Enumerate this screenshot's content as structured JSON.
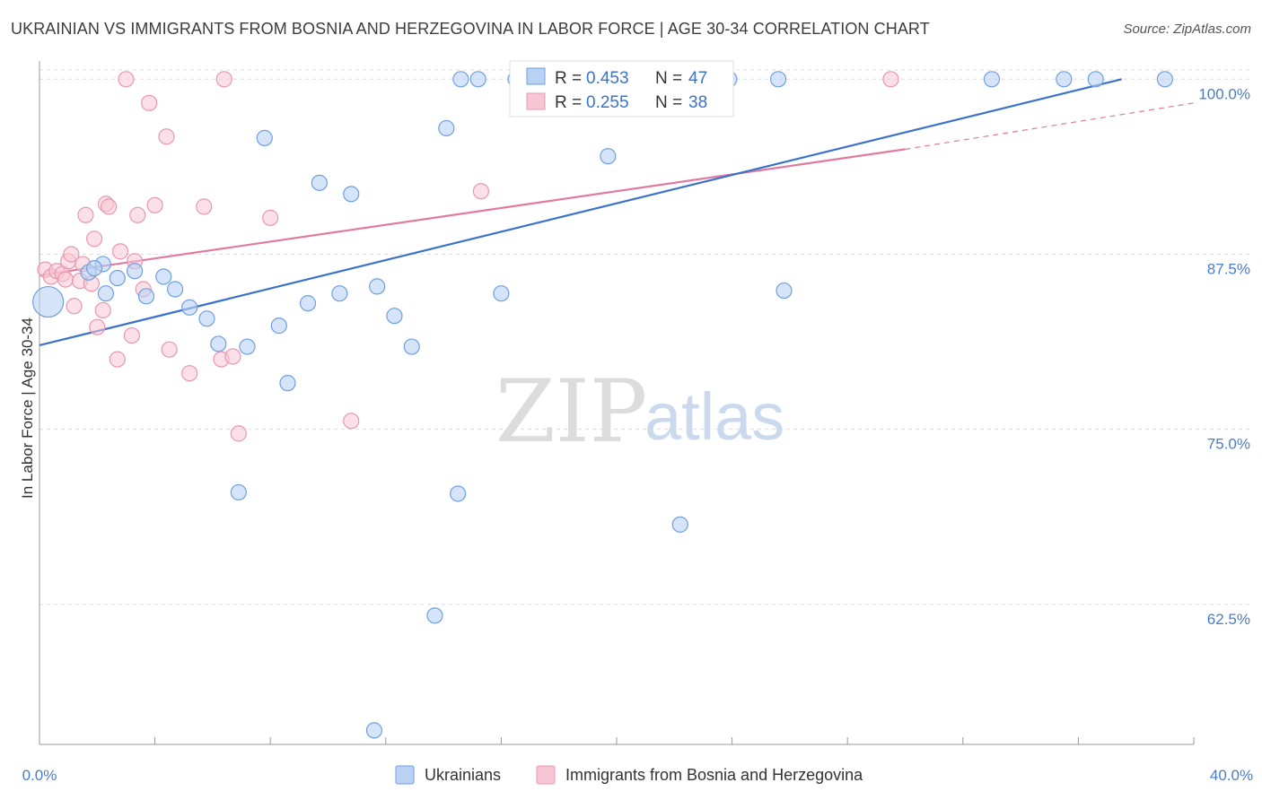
{
  "header": {
    "title": "UKRAINIAN VS IMMIGRANTS FROM BOSNIA AND HERZEGOVINA IN LABOR FORCE | AGE 30-34 CORRELATION CHART",
    "source": "Source: ZipAtlas.com"
  },
  "watermark": {
    "zip": "ZIP",
    "atlas": "atlas"
  },
  "colors": {
    "blue_fill": "#b9d2f3",
    "blue_stroke": "#6f9fe0",
    "blue_line": "#3a73c9",
    "pink_fill": "#f7c6d4",
    "pink_stroke": "#e897b0",
    "pink_line": "#e07aa0",
    "grid": "#dddddd",
    "axis": "#999999",
    "tick_text": "#4a7cc9"
  },
  "stats": {
    "r_label": "R =",
    "n_label": "N =",
    "blue": {
      "r": "0.453",
      "n": "47"
    },
    "pink": {
      "r": "0.255",
      "n": "38"
    }
  },
  "chart_data": {
    "type": "scatter",
    "title": "UKRAINIAN VS IMMIGRANTS FROM BOSNIA AND HERZEGOVINA IN LABOR FORCE | AGE 30-34 CORRELATION CHART",
    "xlabel": "",
    "ylabel": "In Labor Force | Age 30-34",
    "xlim": [
      0,
      40
    ],
    "ylim": [
      52.5,
      101.3
    ],
    "x_tick_labels": [
      "0.0%",
      "40.0%"
    ],
    "y_ticks": [
      62.5,
      75.0,
      87.5,
      100.0
    ],
    "y_tick_labels": [
      "62.5%",
      "75.0%",
      "87.5%",
      "100.0%"
    ],
    "grid": true,
    "legend_position": "bottom",
    "series": [
      {
        "name": "Ukrainians",
        "color": "#6f9fe0",
        "trend": {
          "x": [
            0,
            37.5
          ],
          "y": [
            81.0,
            100.0
          ]
        },
        "points": [
          {
            "x": 0.3,
            "y": 84.1,
            "big": true
          },
          {
            "x": 1.7,
            "y": 86.2
          },
          {
            "x": 2.2,
            "y": 86.8
          },
          {
            "x": 1.9,
            "y": 86.5
          },
          {
            "x": 2.3,
            "y": 84.7
          },
          {
            "x": 2.7,
            "y": 85.8
          },
          {
            "x": 3.3,
            "y": 86.3
          },
          {
            "x": 3.7,
            "y": 84.5
          },
          {
            "x": 4.3,
            "y": 85.9
          },
          {
            "x": 4.7,
            "y": 85.0
          },
          {
            "x": 5.2,
            "y": 83.7
          },
          {
            "x": 5.8,
            "y": 82.9
          },
          {
            "x": 6.2,
            "y": 81.1
          },
          {
            "x": 7.2,
            "y": 80.9
          },
          {
            "x": 7.8,
            "y": 95.8
          },
          {
            "x": 8.3,
            "y": 82.4
          },
          {
            "x": 8.6,
            "y": 78.3
          },
          {
            "x": 9.3,
            "y": 84.0
          },
          {
            "x": 9.7,
            "y": 92.6
          },
          {
            "x": 10.4,
            "y": 84.7
          },
          {
            "x": 10.8,
            "y": 91.8
          },
          {
            "x": 11.7,
            "y": 85.2
          },
          {
            "x": 12.3,
            "y": 83.1
          },
          {
            "x": 12.9,
            "y": 80.9
          },
          {
            "x": 14.1,
            "y": 96.5
          },
          {
            "x": 14.6,
            "y": 100.0
          },
          {
            "x": 15.2,
            "y": 100.0
          },
          {
            "x": 16.0,
            "y": 84.7
          },
          {
            "x": 16.6,
            "y": 100.0
          },
          {
            "x": 17.6,
            "y": 100.0
          },
          {
            "x": 19.7,
            "y": 94.5
          },
          {
            "x": 21.9,
            "y": 100.0
          },
          {
            "x": 22.5,
            "y": 100.0
          },
          {
            "x": 23.9,
            "y": 100.0
          },
          {
            "x": 25.6,
            "y": 100.0
          },
          {
            "x": 25.8,
            "y": 84.9
          },
          {
            "x": 33.0,
            "y": 100.0
          },
          {
            "x": 35.5,
            "y": 100.0
          },
          {
            "x": 36.6,
            "y": 100.0
          },
          {
            "x": 39.0,
            "y": 100.0
          },
          {
            "x": 6.9,
            "y": 70.5
          },
          {
            "x": 14.5,
            "y": 70.4
          },
          {
            "x": 22.2,
            "y": 68.2
          },
          {
            "x": 13.7,
            "y": 61.7
          },
          {
            "x": 11.6,
            "y": 53.5
          },
          {
            "x": 16.5,
            "y": 100.0
          },
          {
            "x": 17.1,
            "y": 100.0
          }
        ]
      },
      {
        "name": "Immigrants from Bosnia and Herzegovina",
        "color": "#e897b0",
        "trend": {
          "x": [
            0,
            30.0
          ],
          "y": [
            86.0,
            95.0
          ]
        },
        "trend_dashed": {
          "x": [
            30.0,
            40.0
          ],
          "y": [
            95.0,
            98.3
          ]
        },
        "points": [
          {
            "x": 0.2,
            "y": 86.4
          },
          {
            "x": 0.4,
            "y": 85.9
          },
          {
            "x": 0.6,
            "y": 86.3
          },
          {
            "x": 0.8,
            "y": 86.1
          },
          {
            "x": 1.0,
            "y": 87.0
          },
          {
            "x": 0.9,
            "y": 85.7
          },
          {
            "x": 1.1,
            "y": 87.5
          },
          {
            "x": 1.2,
            "y": 83.8
          },
          {
            "x": 1.4,
            "y": 85.6
          },
          {
            "x": 1.5,
            "y": 86.8
          },
          {
            "x": 1.6,
            "y": 90.3
          },
          {
            "x": 1.8,
            "y": 85.4
          },
          {
            "x": 1.9,
            "y": 88.6
          },
          {
            "x": 2.0,
            "y": 82.3
          },
          {
            "x": 2.2,
            "y": 83.5
          },
          {
            "x": 2.3,
            "y": 91.1
          },
          {
            "x": 2.4,
            "y": 90.9
          },
          {
            "x": 2.7,
            "y": 80.0
          },
          {
            "x": 2.8,
            "y": 87.7
          },
          {
            "x": 3.2,
            "y": 81.7
          },
          {
            "x": 3.3,
            "y": 87.0
          },
          {
            "x": 3.4,
            "y": 90.3
          },
          {
            "x": 3.6,
            "y": 85.0
          },
          {
            "x": 3.0,
            "y": 100.0
          },
          {
            "x": 3.8,
            "y": 98.3
          },
          {
            "x": 4.0,
            "y": 91.0
          },
          {
            "x": 4.4,
            "y": 95.9
          },
          {
            "x": 4.5,
            "y": 80.7
          },
          {
            "x": 5.2,
            "y": 79.0
          },
          {
            "x": 5.7,
            "y": 90.9
          },
          {
            "x": 6.3,
            "y": 80.0
          },
          {
            "x": 6.7,
            "y": 80.2
          },
          {
            "x": 6.4,
            "y": 100.0
          },
          {
            "x": 6.9,
            "y": 74.7
          },
          {
            "x": 8.0,
            "y": 90.1
          },
          {
            "x": 10.8,
            "y": 75.6
          },
          {
            "x": 15.3,
            "y": 92.0
          },
          {
            "x": 29.5,
            "y": 100.0
          }
        ]
      }
    ]
  }
}
